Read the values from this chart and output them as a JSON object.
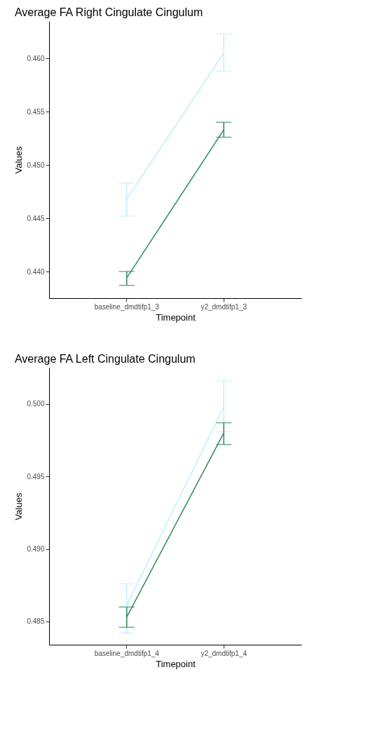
{
  "chart_data": [
    {
      "type": "line",
      "title": "Average FA Right Cingulate Cingulum",
      "xlabel": "Timepoint",
      "ylabel": "Values",
      "categories": [
        "baseline_dmdtifp1_3",
        "y2_dmdtifp1_3"
      ],
      "ylim": [
        0.4375,
        0.4635
      ],
      "yticks": [
        {
          "value": 0.44,
          "label": "0.440"
        },
        0.445,
        {
          "value": 0.45,
          "label": "0.450"
        },
        0.455,
        {
          "value": 0.46,
          "label": "0.460"
        }
      ],
      "grid": false,
      "marker": "none",
      "line_style": "solid",
      "series": [
        {
          "color": "#bfeffd",
          "values": [
            0.4468,
            0.4605
          ],
          "errors": [
            [
              0.4452,
              0.4483
            ],
            [
              0.4588,
              0.4623
            ]
          ]
        },
        {
          "color": "#2e8b57",
          "values": [
            0.4394,
            0.4533
          ],
          "errors": [
            [
              0.4387,
              0.44
            ],
            [
              0.4526,
              0.454
            ]
          ]
        }
      ]
    },
    {
      "type": "line",
      "title": "Average FA Left Cingulate Cingulum",
      "xlabel": "Timepoint",
      "ylabel": "Values",
      "categories": [
        "baseline_dmdtifp1_4",
        "y2_dmdtifp1_4"
      ],
      "ylim": [
        0.4834,
        0.5025
      ],
      "yticks": [
        0.485,
        {
          "value": 0.49,
          "label": "0.490"
        },
        0.495,
        {
          "value": 0.5,
          "label": "0.500"
        }
      ],
      "grid": false,
      "marker": "none",
      "line_style": "solid",
      "series": [
        {
          "color": "#bfeffd",
          "values": [
            0.4861,
            0.4998
          ],
          "errors": [
            [
              0.4842,
              0.4876
            ],
            [
              0.4981,
              0.5016
            ]
          ]
        },
        {
          "color": "#2e8b57",
          "values": [
            0.4853,
            0.498
          ],
          "errors": [
            [
              0.4846,
              0.486
            ],
            [
              0.4972,
              0.4987
            ]
          ]
        }
      ]
    }
  ]
}
